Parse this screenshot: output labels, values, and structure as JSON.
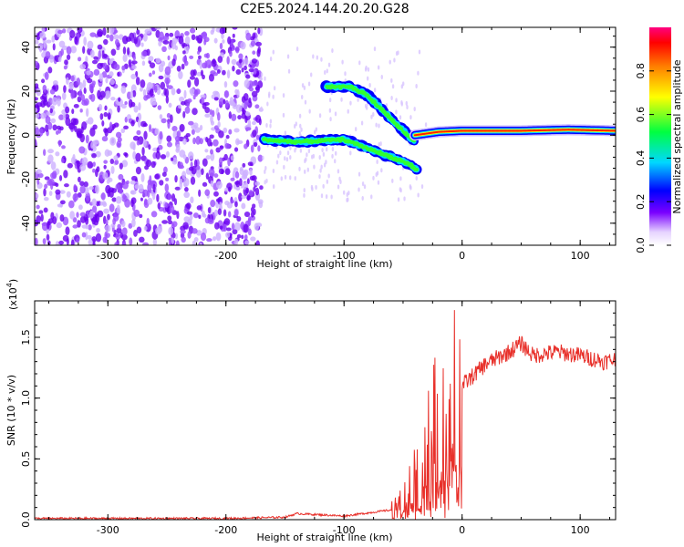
{
  "title": "C2E5.2024.144.20.20.G28",
  "chart_data": [
    {
      "type": "heatmap",
      "xlabel": "Height of straight line (km)",
      "ylabel": "Frequency (Hz)",
      "xlim": [
        -362,
        130
      ],
      "ylim": [
        -50,
        49
      ],
      "xticks": [
        -300,
        -200,
        -100,
        0,
        100
      ],
      "yticks": [
        -40,
        -20,
        0,
        20,
        40
      ],
      "colorbar": {
        "label": "Normalized spectral amplitude",
        "range": [
          0,
          1
        ],
        "ticks": [
          "0.0",
          "0.2",
          "0.4",
          "0.6",
          "0.8"
        ]
      },
      "features": [
        {
          "name": "noise",
          "x_range": [
            -362,
            -170
          ],
          "y_range": [
            -50,
            49
          ]
        },
        {
          "name": "main-trace",
          "points": [
            [
              -168,
              -2
            ],
            [
              -140,
              -3
            ],
            [
              -120,
              -2.5
            ],
            [
              -100,
              -2
            ],
            [
              -80,
              -6
            ],
            [
              -60,
              -10
            ],
            [
              -45,
              -13
            ],
            [
              -38,
              -16
            ]
          ]
        },
        {
          "name": "upper-branch",
          "points": [
            [
              -115,
              22
            ],
            [
              -95,
              22
            ],
            [
              -80,
              18
            ],
            [
              -65,
              10
            ],
            [
              -50,
              2
            ],
            [
              -40,
              -3
            ]
          ]
        },
        {
          "name": "carrier",
          "points": [
            [
              -40,
              0
            ],
            [
              -20,
              1.5
            ],
            [
              0,
              2
            ],
            [
              50,
              2
            ],
            [
              90,
              2.5
            ],
            [
              130,
              2
            ]
          ]
        }
      ]
    },
    {
      "type": "line",
      "xlabel": "Height of straight line (km)",
      "ylabel": "SNR (10 * v/v)",
      "ymultiplier": "(x10",
      "ymultiplier_exp": "4",
      "xlim": [
        -362,
        130
      ],
      "ylim": [
        0,
        1.8
      ],
      "xticks": [
        -300,
        -200,
        -100,
        0,
        100
      ],
      "yticks": [
        "0.0",
        "0.5",
        "1.0",
        "1.5"
      ],
      "color": "#e8302a",
      "x": [
        -362,
        -300,
        -200,
        -150,
        -140,
        -100,
        -60,
        -50,
        -40,
        -30,
        -20,
        -10,
        0,
        20,
        40,
        50,
        60,
        80,
        100,
        120,
        130
      ],
      "y": [
        0.01,
        0.01,
        0.01,
        0.02,
        0.05,
        0.03,
        0.08,
        0.15,
        0.35,
        0.6,
        0.75,
        0.95,
        1.1,
        1.28,
        1.38,
        1.45,
        1.35,
        1.38,
        1.35,
        1.3,
        1.32
      ]
    }
  ]
}
